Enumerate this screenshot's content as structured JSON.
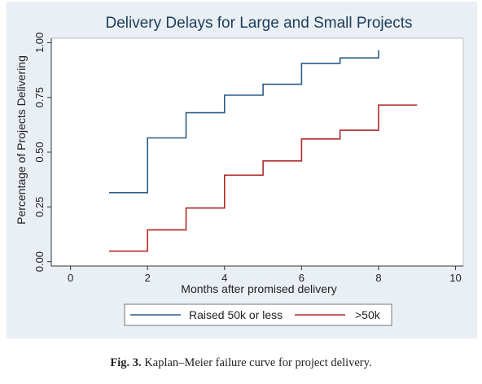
{
  "figure": {
    "caption_label": "Fig. 3.",
    "caption_text": " Kaplan–Meier failure curve for project delivery."
  },
  "colors": {
    "panel_background": "#e9eff4",
    "plot_background": "#ffffff",
    "title": "#1b3c5a",
    "series_small": "#2b5d87",
    "series_large": "#b02a2a"
  },
  "chart_data": {
    "type": "line",
    "step": true,
    "title": "Delivery Delays for Large and Small Projects",
    "xlabel": "Months after promised delivery",
    "ylabel": "Percentage of Projects Delivering",
    "xlim": [
      -0.5,
      10.2
    ],
    "ylim": [
      -0.02,
      1.02
    ],
    "xticks": [
      0,
      2,
      4,
      6,
      8,
      10
    ],
    "xtick_labels": [
      "0",
      "2",
      "4",
      "6",
      "8",
      "10"
    ],
    "yticks": [
      0,
      0.25,
      0.5,
      0.75,
      1
    ],
    "ytick_labels": [
      "0.00",
      "0.25",
      "0.50",
      "0.75",
      "1.00"
    ],
    "grid": false,
    "legend_position": "bottom",
    "series": [
      {
        "name": "Raised 50k or less",
        "color": "#2b5d87",
        "points": [
          [
            1,
            0.315
          ],
          [
            2,
            0.565
          ],
          [
            3,
            0.68
          ],
          [
            4,
            0.76
          ],
          [
            5,
            0.81
          ],
          [
            6,
            0.905
          ],
          [
            7,
            0.93
          ],
          [
            8,
            0.965
          ]
        ]
      },
      {
        "name": ">50k",
        "color": "#b02a2a",
        "points": [
          [
            1,
            0.048
          ],
          [
            2,
            0.145
          ],
          [
            3,
            0.245
          ],
          [
            4,
            0.395
          ],
          [
            5,
            0.46
          ],
          [
            6,
            0.56
          ],
          [
            7,
            0.6
          ],
          [
            8,
            0.715
          ],
          [
            9,
            0.715
          ]
        ]
      }
    ]
  }
}
